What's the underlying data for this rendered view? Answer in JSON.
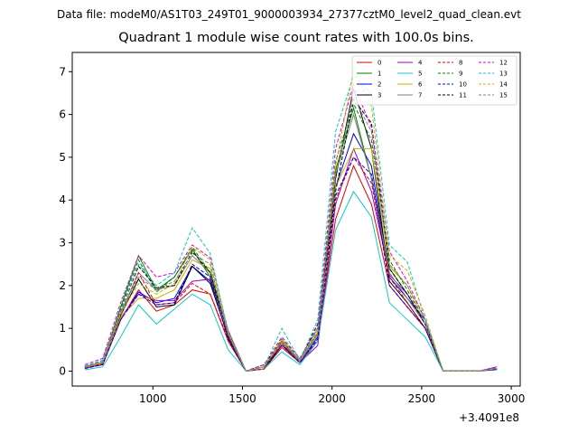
{
  "figure": {
    "suptitle": "Data file: modeM0/AS1T03_249T01_9000003934_27377cztM0_level2_quad_clean.evt"
  },
  "chart_data": {
    "type": "line",
    "title": "Quadrant 1 module wise count rates with 100.0s bins.",
    "xlabel": "",
    "ylabel": "",
    "x_offset_label": "+3.4091e8",
    "xlim": [
      550,
      3050
    ],
    "ylim": [
      -0.35,
      7.45
    ],
    "x_ticks": [
      1000,
      1500,
      2000,
      2500,
      3000
    ],
    "x_tick_labels": [
      "1000",
      "1500",
      "2000",
      "2500",
      "3000"
    ],
    "y_ticks": [
      0,
      1,
      2,
      3,
      4,
      5,
      6,
      7
    ],
    "y_tick_labels": [
      "0",
      "1",
      "2",
      "3",
      "4",
      "5",
      "6",
      "7"
    ],
    "grid": false,
    "legend_position": "top-right",
    "x": [
      620,
      720,
      820,
      920,
      1020,
      1120,
      1220,
      1320,
      1420,
      1520,
      1620,
      1720,
      1820,
      1920,
      2020,
      2120,
      2220,
      2320,
      2420,
      2520,
      2620,
      2720,
      2820,
      2920
    ],
    "series": [
      {
        "name": "0",
        "color": "#e00000",
        "dash": "solid",
        "values": [
          0.08,
          0.15,
          1.2,
          1.9,
          1.4,
          1.55,
          1.9,
          1.8,
          0.7,
          0.0,
          0.05,
          0.55,
          0.2,
          0.7,
          3.55,
          4.8,
          3.9,
          2.0,
          1.5,
          1.0,
          0.0,
          0.0,
          0.0,
          0.05
        ]
      },
      {
        "name": "1",
        "color": "#008000",
        "dash": "solid",
        "values": [
          0.1,
          0.2,
          1.5,
          2.7,
          1.9,
          2.2,
          2.85,
          2.2,
          0.9,
          0.0,
          0.1,
          0.7,
          0.25,
          0.9,
          4.7,
          6.15,
          4.5,
          2.4,
          1.8,
          1.1,
          0.0,
          0.0,
          0.0,
          0.06
        ]
      },
      {
        "name": "2",
        "color": "#0000e0",
        "dash": "solid",
        "values": [
          0.07,
          0.15,
          1.2,
          1.85,
          1.6,
          1.7,
          2.45,
          2.1,
          0.8,
          0.0,
          0.1,
          0.65,
          0.2,
          0.8,
          4.3,
          5.55,
          4.8,
          2.2,
          1.7,
          1.2,
          0.0,
          0.0,
          0.0,
          0.05
        ]
      },
      {
        "name": "3",
        "color": "#000000",
        "dash": "solid",
        "values": [
          0.1,
          0.2,
          1.3,
          2.15,
          1.5,
          1.55,
          2.45,
          2.05,
          0.8,
          0.0,
          0.05,
          0.6,
          0.25,
          0.85,
          4.5,
          6.6,
          5.2,
          2.1,
          1.6,
          1.0,
          0.0,
          0.0,
          0.0,
          0.05
        ]
      },
      {
        "name": "4",
        "color": "#a000c0",
        "dash": "solid",
        "values": [
          0.08,
          0.15,
          1.25,
          1.8,
          1.65,
          1.65,
          2.1,
          2.15,
          0.75,
          0.0,
          0.1,
          0.6,
          0.2,
          0.6,
          3.9,
          5.2,
          4.2,
          2.25,
          1.8,
          1.1,
          0.0,
          0.0,
          0.0,
          0.1
        ]
      },
      {
        "name": "5",
        "color": "#10c8c0",
        "dash": "solid",
        "values": [
          0.03,
          0.1,
          0.8,
          1.55,
          1.1,
          1.45,
          1.8,
          1.55,
          0.5,
          0.0,
          0.05,
          0.45,
          0.15,
          0.7,
          3.3,
          4.2,
          3.6,
          1.6,
          1.2,
          0.8,
          0.0,
          0.0,
          0.0,
          0.03
        ]
      },
      {
        "name": "6",
        "color": "#c8b400",
        "dash": "solid",
        "values": [
          0.09,
          0.18,
          1.25,
          1.7,
          1.7,
          1.9,
          2.6,
          2.4,
          0.85,
          0.0,
          0.1,
          0.65,
          0.25,
          0.85,
          4.3,
          5.2,
          5.2,
          2.45,
          2.0,
          1.2,
          0.0,
          0.0,
          0.0,
          0.06
        ]
      },
      {
        "name": "7",
        "color": "#808080",
        "dash": "solid",
        "values": [
          0.1,
          0.2,
          1.35,
          2.3,
          1.9,
          2.0,
          2.7,
          2.3,
          0.85,
          0.0,
          0.1,
          0.7,
          0.2,
          0.9,
          4.6,
          6.0,
          4.5,
          2.3,
          1.7,
          1.1,
          0.0,
          0.0,
          0.0,
          0.05
        ]
      },
      {
        "name": "8",
        "color": "#e00000",
        "dash": "dashed",
        "values": [
          0.08,
          0.18,
          1.3,
          2.3,
          1.55,
          1.6,
          2.05,
          1.8,
          0.75,
          0.0,
          0.05,
          0.65,
          0.2,
          0.75,
          4.0,
          5.0,
          4.4,
          2.2,
          1.6,
          1.0,
          0.0,
          0.0,
          0.0,
          0.05
        ]
      },
      {
        "name": "9",
        "color": "#008000",
        "dash": "dashed",
        "values": [
          0.1,
          0.25,
          1.45,
          2.6,
          1.85,
          2.2,
          2.9,
          2.3,
          0.95,
          0.0,
          0.1,
          0.75,
          0.3,
          1.0,
          4.9,
          6.25,
          5.4,
          2.6,
          1.9,
          1.1,
          0.0,
          0.0,
          0.0,
          0.06
        ]
      },
      {
        "name": "10",
        "color": "#0000e0",
        "dash": "dashed",
        "values": [
          0.06,
          0.15,
          1.2,
          1.8,
          1.55,
          1.6,
          2.5,
          2.2,
          0.75,
          0.0,
          0.1,
          0.6,
          0.2,
          0.75,
          4.1,
          5.0,
          4.6,
          2.0,
          1.5,
          1.0,
          0.0,
          0.0,
          0.0,
          0.04
        ]
      },
      {
        "name": "11",
        "color": "#000000",
        "dash": "dashed",
        "values": [
          0.12,
          0.25,
          1.4,
          2.45,
          1.95,
          2.0,
          2.8,
          2.3,
          0.85,
          0.0,
          0.15,
          0.7,
          0.25,
          1.1,
          4.2,
          6.35,
          5.8,
          2.4,
          1.8,
          1.1,
          0.0,
          0.0,
          0.0,
          0.05
        ]
      },
      {
        "name": "12",
        "color": "#e000e0",
        "dash": "dashed",
        "values": [
          0.15,
          0.3,
          1.6,
          2.7,
          2.2,
          2.3,
          2.95,
          2.65,
          0.95,
          0.0,
          0.15,
          0.8,
          0.3,
          1.0,
          5.2,
          6.7,
          5.7,
          2.8,
          2.1,
          1.2,
          0.0,
          0.0,
          0.0,
          0.08
        ]
      },
      {
        "name": "13",
        "color": "#10c8c0",
        "dash": "dashed",
        "values": [
          0.12,
          0.25,
          1.4,
          2.5,
          2.0,
          2.3,
          3.35,
          2.75,
          0.9,
          0.0,
          0.1,
          1.0,
          0.25,
          1.2,
          5.6,
          6.9,
          6.5,
          2.95,
          2.55,
          1.2,
          0.0,
          0.0,
          0.0,
          0.06
        ]
      },
      {
        "name": "14",
        "color": "#c8b400",
        "dash": "dashed",
        "values": [
          0.09,
          0.2,
          1.35,
          2.05,
          1.8,
          2.05,
          2.9,
          2.6,
          0.9,
          0.0,
          0.1,
          0.75,
          0.25,
          0.95,
          4.8,
          7.05,
          6.2,
          2.7,
          2.35,
          1.3,
          0.0,
          0.0,
          0.0,
          0.06
        ]
      },
      {
        "name": "15",
        "color": "#808080",
        "dash": "dashed",
        "values": [
          0.1,
          0.22,
          1.4,
          2.2,
          1.9,
          2.1,
          2.75,
          2.5,
          0.85,
          0.0,
          0.1,
          0.7,
          0.25,
          1.0,
          4.6,
          6.4,
          5.6,
          2.5,
          2.0,
          1.1,
          0.0,
          0.0,
          0.0,
          0.06
        ]
      }
    ]
  }
}
